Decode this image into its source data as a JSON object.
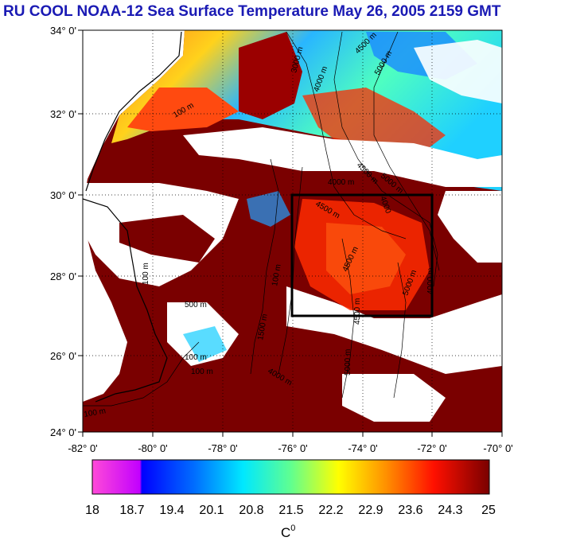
{
  "title": "RU COOL  NOAA-12 Sea Surface Temperature May 26, 2005 2159 GMT",
  "map": {
    "lat_labels": [
      "34° 0'",
      "32° 0'",
      "30° 0'",
      "28° 0'",
      "26° 0'",
      "24° 0'"
    ],
    "lon_labels": [
      "-82° 0'",
      "-80° 0'",
      "-78° 0'",
      "-76° 0'",
      "-74° 0'",
      "-72° 0'",
      "-70° 0'"
    ],
    "lat_range": [
      24,
      34
    ],
    "lon_range": [
      -82,
      -70
    ],
    "grid": "dotted",
    "study_box": {
      "lon": [
        -76,
        -72
      ],
      "lat": [
        27,
        30
      ]
    },
    "contour_labels": [
      "100 m",
      "3000 m",
      "4000 m",
      "4500 m",
      "5000 m",
      "4000 m",
      "4500 m",
      "5000 m",
      "4000",
      "4500 m",
      "100 m",
      "4500 m",
      "5000 m",
      "4500 m",
      "5000 m",
      "4000 m",
      "100 m",
      "500 m",
      "100 m",
      "1500 m",
      "100 m",
      "100 m",
      "4000 m"
    ],
    "colors": {
      "land": "#7a0000",
      "cloud": "#ffffff",
      "coast": "#000000",
      "box": "#000000"
    }
  },
  "colorbar": {
    "tick_labels": [
      "18",
      "18.7",
      "19.4",
      "20.1",
      "20.8",
      "21.5",
      "22.2",
      "22.9",
      "23.6",
      "24.3",
      "25"
    ],
    "unit": "C",
    "unit_sup": "0",
    "range": [
      18,
      25
    ],
    "colors": [
      "#ff44ff",
      "#0000ff",
      "#00aaff",
      "#00ffff",
      "#80ff80",
      "#ffff00",
      "#ff8800",
      "#ff0000",
      "#800000"
    ]
  }
}
